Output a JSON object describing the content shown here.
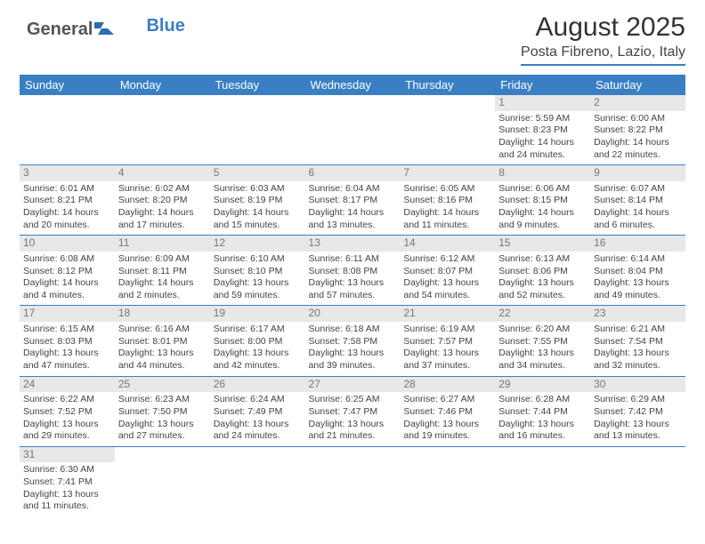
{
  "logo": {
    "text1": "General",
    "text2": "Blue"
  },
  "title": {
    "month": "August 2025",
    "location": "Posta Fibreno, Lazio, Italy"
  },
  "colors": {
    "accent": "#3a7fc4",
    "headerRow": "#e8e8e8",
    "bg": "#ffffff"
  },
  "typography": {
    "title_fontsize": 30,
    "location_fontsize": 16,
    "dayhead_fontsize": 13,
    "cell_fontsize": 10.5
  },
  "dayHeaders": [
    "Sunday",
    "Monday",
    "Tuesday",
    "Wednesday",
    "Thursday",
    "Friday",
    "Saturday"
  ],
  "weeks": [
    [
      {
        "n": "",
        "sunrise": "",
        "sunset": "",
        "day1": "",
        "day2": ""
      },
      {
        "n": "",
        "sunrise": "",
        "sunset": "",
        "day1": "",
        "day2": ""
      },
      {
        "n": "",
        "sunrise": "",
        "sunset": "",
        "day1": "",
        "day2": ""
      },
      {
        "n": "",
        "sunrise": "",
        "sunset": "",
        "day1": "",
        "day2": ""
      },
      {
        "n": "",
        "sunrise": "",
        "sunset": "",
        "day1": "",
        "day2": ""
      },
      {
        "n": "1",
        "sunrise": "Sunrise: 5:59 AM",
        "sunset": "Sunset: 8:23 PM",
        "day1": "Daylight: 14 hours",
        "day2": "and 24 minutes."
      },
      {
        "n": "2",
        "sunrise": "Sunrise: 6:00 AM",
        "sunset": "Sunset: 8:22 PM",
        "day1": "Daylight: 14 hours",
        "day2": "and 22 minutes."
      }
    ],
    [
      {
        "n": "3",
        "sunrise": "Sunrise: 6:01 AM",
        "sunset": "Sunset: 8:21 PM",
        "day1": "Daylight: 14 hours",
        "day2": "and 20 minutes."
      },
      {
        "n": "4",
        "sunrise": "Sunrise: 6:02 AM",
        "sunset": "Sunset: 8:20 PM",
        "day1": "Daylight: 14 hours",
        "day2": "and 17 minutes."
      },
      {
        "n": "5",
        "sunrise": "Sunrise: 6:03 AM",
        "sunset": "Sunset: 8:19 PM",
        "day1": "Daylight: 14 hours",
        "day2": "and 15 minutes."
      },
      {
        "n": "6",
        "sunrise": "Sunrise: 6:04 AM",
        "sunset": "Sunset: 8:17 PM",
        "day1": "Daylight: 14 hours",
        "day2": "and 13 minutes."
      },
      {
        "n": "7",
        "sunrise": "Sunrise: 6:05 AM",
        "sunset": "Sunset: 8:16 PM",
        "day1": "Daylight: 14 hours",
        "day2": "and 11 minutes."
      },
      {
        "n": "8",
        "sunrise": "Sunrise: 6:06 AM",
        "sunset": "Sunset: 8:15 PM",
        "day1": "Daylight: 14 hours",
        "day2": "and 9 minutes."
      },
      {
        "n": "9",
        "sunrise": "Sunrise: 6:07 AM",
        "sunset": "Sunset: 8:14 PM",
        "day1": "Daylight: 14 hours",
        "day2": "and 6 minutes."
      }
    ],
    [
      {
        "n": "10",
        "sunrise": "Sunrise: 6:08 AM",
        "sunset": "Sunset: 8:12 PM",
        "day1": "Daylight: 14 hours",
        "day2": "and 4 minutes."
      },
      {
        "n": "11",
        "sunrise": "Sunrise: 6:09 AM",
        "sunset": "Sunset: 8:11 PM",
        "day1": "Daylight: 14 hours",
        "day2": "and 2 minutes."
      },
      {
        "n": "12",
        "sunrise": "Sunrise: 6:10 AM",
        "sunset": "Sunset: 8:10 PM",
        "day1": "Daylight: 13 hours",
        "day2": "and 59 minutes."
      },
      {
        "n": "13",
        "sunrise": "Sunrise: 6:11 AM",
        "sunset": "Sunset: 8:08 PM",
        "day1": "Daylight: 13 hours",
        "day2": "and 57 minutes."
      },
      {
        "n": "14",
        "sunrise": "Sunrise: 6:12 AM",
        "sunset": "Sunset: 8:07 PM",
        "day1": "Daylight: 13 hours",
        "day2": "and 54 minutes."
      },
      {
        "n": "15",
        "sunrise": "Sunrise: 6:13 AM",
        "sunset": "Sunset: 8:06 PM",
        "day1": "Daylight: 13 hours",
        "day2": "and 52 minutes."
      },
      {
        "n": "16",
        "sunrise": "Sunrise: 6:14 AM",
        "sunset": "Sunset: 8:04 PM",
        "day1": "Daylight: 13 hours",
        "day2": "and 49 minutes."
      }
    ],
    [
      {
        "n": "17",
        "sunrise": "Sunrise: 6:15 AM",
        "sunset": "Sunset: 8:03 PM",
        "day1": "Daylight: 13 hours",
        "day2": "and 47 minutes."
      },
      {
        "n": "18",
        "sunrise": "Sunrise: 6:16 AM",
        "sunset": "Sunset: 8:01 PM",
        "day1": "Daylight: 13 hours",
        "day2": "and 44 minutes."
      },
      {
        "n": "19",
        "sunrise": "Sunrise: 6:17 AM",
        "sunset": "Sunset: 8:00 PM",
        "day1": "Daylight: 13 hours",
        "day2": "and 42 minutes."
      },
      {
        "n": "20",
        "sunrise": "Sunrise: 6:18 AM",
        "sunset": "Sunset: 7:58 PM",
        "day1": "Daylight: 13 hours",
        "day2": "and 39 minutes."
      },
      {
        "n": "21",
        "sunrise": "Sunrise: 6:19 AM",
        "sunset": "Sunset: 7:57 PM",
        "day1": "Daylight: 13 hours",
        "day2": "and 37 minutes."
      },
      {
        "n": "22",
        "sunrise": "Sunrise: 6:20 AM",
        "sunset": "Sunset: 7:55 PM",
        "day1": "Daylight: 13 hours",
        "day2": "and 34 minutes."
      },
      {
        "n": "23",
        "sunrise": "Sunrise: 6:21 AM",
        "sunset": "Sunset: 7:54 PM",
        "day1": "Daylight: 13 hours",
        "day2": "and 32 minutes."
      }
    ],
    [
      {
        "n": "24",
        "sunrise": "Sunrise: 6:22 AM",
        "sunset": "Sunset: 7:52 PM",
        "day1": "Daylight: 13 hours",
        "day2": "and 29 minutes."
      },
      {
        "n": "25",
        "sunrise": "Sunrise: 6:23 AM",
        "sunset": "Sunset: 7:50 PM",
        "day1": "Daylight: 13 hours",
        "day2": "and 27 minutes."
      },
      {
        "n": "26",
        "sunrise": "Sunrise: 6:24 AM",
        "sunset": "Sunset: 7:49 PM",
        "day1": "Daylight: 13 hours",
        "day2": "and 24 minutes."
      },
      {
        "n": "27",
        "sunrise": "Sunrise: 6:25 AM",
        "sunset": "Sunset: 7:47 PM",
        "day1": "Daylight: 13 hours",
        "day2": "and 21 minutes."
      },
      {
        "n": "28",
        "sunrise": "Sunrise: 6:27 AM",
        "sunset": "Sunset: 7:46 PM",
        "day1": "Daylight: 13 hours",
        "day2": "and 19 minutes."
      },
      {
        "n": "29",
        "sunrise": "Sunrise: 6:28 AM",
        "sunset": "Sunset: 7:44 PM",
        "day1": "Daylight: 13 hours",
        "day2": "and 16 minutes."
      },
      {
        "n": "30",
        "sunrise": "Sunrise: 6:29 AM",
        "sunset": "Sunset: 7:42 PM",
        "day1": "Daylight: 13 hours",
        "day2": "and 13 minutes."
      }
    ],
    [
      {
        "n": "31",
        "sunrise": "Sunrise: 6:30 AM",
        "sunset": "Sunset: 7:41 PM",
        "day1": "Daylight: 13 hours",
        "day2": "and 11 minutes."
      },
      {
        "n": "",
        "sunrise": "",
        "sunset": "",
        "day1": "",
        "day2": ""
      },
      {
        "n": "",
        "sunrise": "",
        "sunset": "",
        "day1": "",
        "day2": ""
      },
      {
        "n": "",
        "sunrise": "",
        "sunset": "",
        "day1": "",
        "day2": ""
      },
      {
        "n": "",
        "sunrise": "",
        "sunset": "",
        "day1": "",
        "day2": ""
      },
      {
        "n": "",
        "sunrise": "",
        "sunset": "",
        "day1": "",
        "day2": ""
      },
      {
        "n": "",
        "sunrise": "",
        "sunset": "",
        "day1": "",
        "day2": ""
      }
    ]
  ]
}
